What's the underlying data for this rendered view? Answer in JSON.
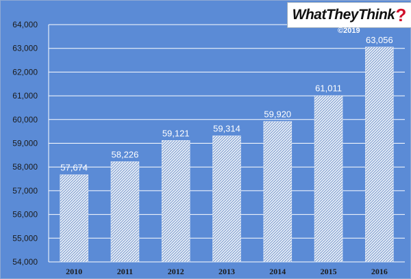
{
  "logo": {
    "text": "WhatTheyThink",
    "mark": "?"
  },
  "copyright": "©2019",
  "colors": {
    "background": "#5b8bd6",
    "grid": "#ffffff",
    "bar_fill": "#e8eef8",
    "bar_hatch": "#6a8fc8"
  },
  "chart_data": {
    "type": "bar",
    "categories": [
      "2010",
      "2011",
      "2012",
      "2013",
      "2014",
      "2015",
      "2016"
    ],
    "values": [
      57674,
      58226,
      59121,
      59314,
      59920,
      61011,
      63056
    ],
    "value_labels": [
      "57,674",
      "58,226",
      "59,121",
      "59,314",
      "59,920",
      "61,011",
      "63,056"
    ],
    "y_ticks": [
      "54,000",
      "55,000",
      "56,000",
      "57,000",
      "58,000",
      "59,000",
      "60,000",
      "61,000",
      "62,000",
      "63,000",
      "64,000"
    ],
    "ylim": [
      54000,
      64000
    ],
    "title": "",
    "xlabel": "",
    "ylabel": "",
    "grid": true,
    "legend": "none"
  }
}
